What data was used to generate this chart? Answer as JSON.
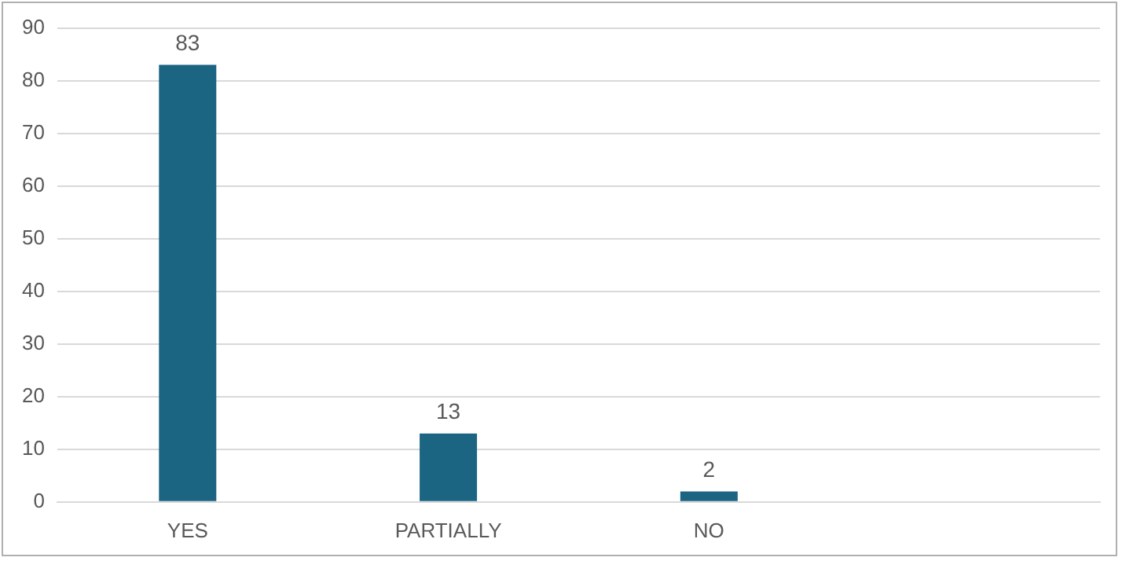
{
  "chart_data": {
    "type": "bar",
    "categories": [
      "YES",
      "PARTIALLY",
      "NO",
      null
    ],
    "values": [
      83,
      13,
      2,
      null
    ],
    "color": "#1b6482",
    "ylim": [
      0,
      90
    ],
    "yticks": [
      0,
      10,
      20,
      30,
      40,
      50,
      60,
      70,
      80,
      90
    ],
    "grid": "y",
    "data_labels": true,
    "legend": false
  }
}
